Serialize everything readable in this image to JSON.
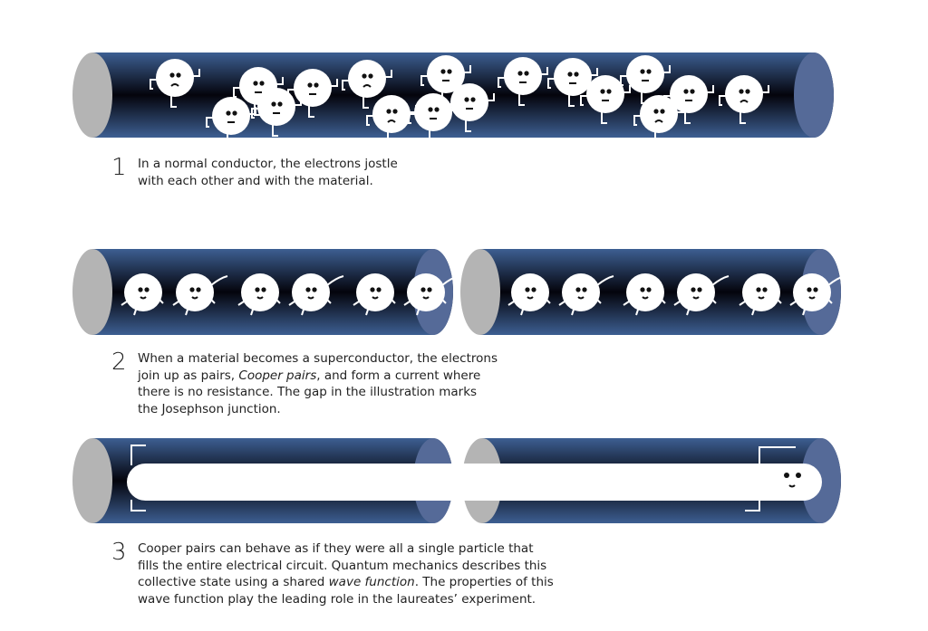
{
  "colors": {
    "tube_light": "#3d5f92",
    "tube_dark": "#04040c",
    "cap_left": "#b4b4b4",
    "cap_right": "#556a98",
    "electron": "#ffffff"
  },
  "steps": [
    {
      "number": "1",
      "lines": [
        {
          "parts": [
            "In a normal conductor, the electrons jostle"
          ]
        },
        {
          "parts": [
            "with each other and with the material."
          ]
        }
      ]
    },
    {
      "number": "2",
      "lines": [
        {
          "parts": [
            "When a material becomes a superconductor, the electrons"
          ]
        },
        {
          "parts": [
            "join up as pairs, ",
            "Cooper pairs",
            ", and form a current where"
          ]
        },
        {
          "parts": [
            "there is no resistance. The gap in the illustration marks"
          ]
        },
        {
          "parts": [
            "the Josephson junction."
          ]
        }
      ]
    },
    {
      "number": "3",
      "lines": [
        {
          "parts": [
            "Cooper pairs can behave as if they were all a single particle that"
          ]
        },
        {
          "parts": [
            "fills the entire electrical circuit. Quantum mechanics describes this"
          ]
        },
        {
          "parts": [
            "collective state using a shared ",
            "wave function",
            ". The properties of this"
          ]
        },
        {
          "parts": [
            "wave function play the leading role in the laureates’ experiment."
          ]
        }
      ]
    }
  ]
}
